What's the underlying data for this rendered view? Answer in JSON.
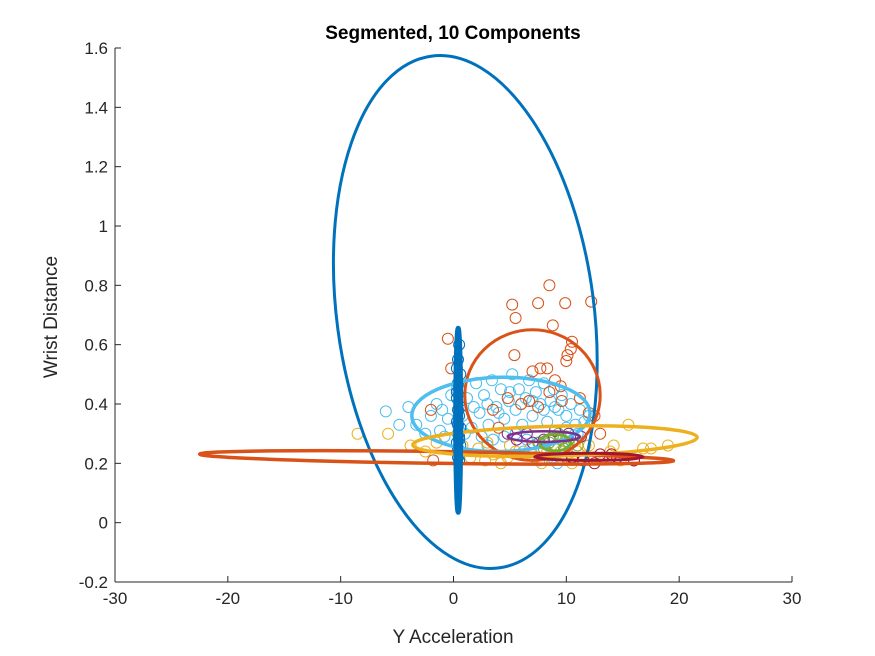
{
  "chart_data": {
    "type": "scatter",
    "title": "Segmented, 10 Components",
    "xlabel": "Y Acceleration",
    "ylabel": "Wrist Distance",
    "xlim": [
      -30,
      30
    ],
    "ylim": [
      -0.2,
      1.6
    ],
    "xticks": [
      -30,
      -20,
      -10,
      0,
      10,
      20,
      30
    ],
    "yticks": [
      -0.2,
      0,
      0.2,
      0.4,
      0.6,
      0.8,
      1,
      1.2,
      1.4,
      1.6
    ],
    "xtick_labels": [
      "-30",
      "-20",
      "-10",
      "0",
      "10",
      "20",
      "30"
    ],
    "ytick_labels": [
      "-0.2",
      "0",
      "0.2",
      "0.4",
      "0.6",
      "0.8",
      "1",
      "1.2",
      "1.4",
      "1.6"
    ],
    "grid": false,
    "legend": "none",
    "colors": {
      "blue": "#0072BD",
      "orange": "#D95319",
      "yellow": "#EDB120",
      "purple": "#7E2F8E",
      "green": "#77AC30",
      "lightblue": "#4DBEEE",
      "darkred": "#A2142F",
      "axis": "#262626"
    },
    "series": [
      {
        "color": "lightblue",
        "points": [
          [
            -6.0,
            0.375
          ],
          [
            -4.8,
            0.33
          ],
          [
            -4.0,
            0.39
          ],
          [
            -3.3,
            0.33
          ],
          [
            -2.5,
            0.3
          ],
          [
            -2.0,
            0.36
          ],
          [
            -1.5,
            0.4
          ],
          [
            -1.0,
            0.38
          ],
          [
            -0.5,
            0.35
          ],
          [
            -1.2,
            0.31
          ],
          [
            -0.2,
            0.43
          ],
          [
            0.3,
            0.45
          ],
          [
            0.8,
            0.36
          ],
          [
            1.2,
            0.42
          ],
          [
            1.6,
            0.32
          ],
          [
            2.0,
            0.47
          ],
          [
            2.3,
            0.37
          ],
          [
            2.7,
            0.43
          ],
          [
            3.1,
            0.33
          ],
          [
            3.4,
            0.48
          ],
          [
            3.8,
            0.39
          ],
          [
            4.2,
            0.45
          ],
          [
            4.5,
            0.35
          ],
          [
            4.9,
            0.41
          ],
          [
            5.2,
            0.5
          ],
          [
            5.5,
            0.38
          ],
          [
            5.8,
            0.45
          ],
          [
            6.1,
            0.33
          ],
          [
            6.4,
            0.42
          ],
          [
            6.7,
            0.48
          ],
          [
            7.0,
            0.36
          ],
          [
            7.3,
            0.44
          ],
          [
            7.7,
            0.4
          ],
          [
            8.0,
            0.47
          ],
          [
            8.3,
            0.34
          ],
          [
            8.6,
            0.41
          ],
          [
            8.9,
            0.45
          ],
          [
            9.3,
            0.38
          ],
          [
            9.6,
            0.43
          ],
          [
            10.0,
            0.36
          ],
          [
            10.4,
            0.4
          ],
          [
            10.8,
            0.33
          ],
          [
            11.2,
            0.38
          ],
          [
            11.6,
            0.34
          ],
          [
            12.0,
            0.36
          ],
          [
            1.0,
            0.3
          ],
          [
            2.5,
            0.29
          ],
          [
            3.5,
            0.28
          ],
          [
            4.5,
            0.29
          ],
          [
            5.5,
            0.3
          ],
          [
            6.5,
            0.28
          ],
          [
            7.5,
            0.27
          ],
          [
            8.5,
            0.28
          ],
          [
            9.5,
            0.29
          ],
          [
            10.5,
            0.27
          ],
          [
            3.0,
            0.4
          ],
          [
            6.0,
            0.4
          ],
          [
            9.0,
            0.39
          ],
          [
            4.0,
            0.37
          ],
          [
            7.0,
            0.41
          ],
          [
            0.5,
            0.31
          ],
          [
            -0.8,
            0.29
          ],
          [
            1.8,
            0.39
          ],
          [
            5.0,
            0.44
          ],
          [
            8.0,
            0.38
          ],
          [
            10.0,
            0.32
          ],
          [
            11.0,
            0.3
          ],
          [
            3.0,
            0.26
          ],
          [
            7.8,
            0.25
          ],
          [
            9.8,
            0.24
          ],
          [
            8.8,
            0.22
          ],
          [
            7.6,
            0.21
          ],
          [
            9.2,
            0.2
          ],
          [
            10.6,
            0.22
          ],
          [
            6.2,
            0.24
          ]
        ]
      },
      {
        "color": "orange",
        "points": [
          [
            8.5,
            0.8
          ],
          [
            12.2,
            0.745
          ],
          [
            7.5,
            0.74
          ],
          [
            9.9,
            0.74
          ],
          [
            5.2,
            0.735
          ],
          [
            5.5,
            0.69
          ],
          [
            8.8,
            0.665
          ],
          [
            10.5,
            0.61
          ],
          [
            10.4,
            0.585
          ],
          [
            10.1,
            0.565
          ],
          [
            10.0,
            0.545
          ],
          [
            5.4,
            0.565
          ],
          [
            7.0,
            0.51
          ],
          [
            7.7,
            0.52
          ],
          [
            8.3,
            0.52
          ],
          [
            9.0,
            0.48
          ],
          [
            9.5,
            0.46
          ],
          [
            8.5,
            0.44
          ],
          [
            6.0,
            0.4
          ],
          [
            7.5,
            0.39
          ],
          [
            9.6,
            0.41
          ],
          [
            11.2,
            0.42
          ],
          [
            12.0,
            0.37
          ],
          [
            12.5,
            0.36
          ],
          [
            -0.5,
            0.62
          ],
          [
            -2.0,
            0.38
          ],
          [
            -1.8,
            0.21
          ],
          [
            16.0,
            0.21
          ],
          [
            -0.2,
            0.52
          ],
          [
            4.8,
            0.42
          ],
          [
            6.7,
            0.41
          ],
          [
            4.0,
            0.32
          ],
          [
            3.5,
            0.38
          ],
          [
            13.0,
            0.3
          ]
        ]
      },
      {
        "color": "yellow",
        "points": [
          [
            -8.5,
            0.3
          ],
          [
            -5.8,
            0.3
          ],
          [
            -3.8,
            0.26
          ],
          [
            15.5,
            0.33
          ],
          [
            16.8,
            0.25
          ],
          [
            17.5,
            0.25
          ],
          [
            19.0,
            0.26
          ],
          [
            14.2,
            0.26
          ],
          [
            13.3,
            0.22
          ],
          [
            12.5,
            0.22
          ],
          [
            11.0,
            0.24
          ],
          [
            10.5,
            0.2
          ],
          [
            9.5,
            0.24
          ],
          [
            8.8,
            0.21
          ],
          [
            8.3,
            0.24
          ],
          [
            7.8,
            0.2
          ],
          [
            6.8,
            0.25
          ],
          [
            6.2,
            0.23
          ],
          [
            5.5,
            0.24
          ],
          [
            4.8,
            0.22
          ],
          [
            4.2,
            0.2
          ],
          [
            3.5,
            0.23
          ],
          [
            2.8,
            0.21
          ],
          [
            2.2,
            0.25
          ],
          [
            1.5,
            0.22
          ],
          [
            0.8,
            0.26
          ],
          [
            -1.5,
            0.27
          ],
          [
            -2.5,
            0.24
          ],
          [
            12.0,
            0.26
          ],
          [
            14.8,
            0.21
          ],
          [
            13.9,
            0.24
          ],
          [
            11.7,
            0.26
          ],
          [
            10.0,
            0.22
          ],
          [
            7.2,
            0.22
          ],
          [
            5.0,
            0.26
          ],
          [
            3.0,
            0.27
          ]
        ]
      },
      {
        "color": "green",
        "points": [
          [
            9.0,
            0.26
          ],
          [
            9.5,
            0.28
          ],
          [
            10.2,
            0.27
          ],
          [
            8.5,
            0.27
          ],
          [
            8.0,
            0.25
          ],
          [
            9.8,
            0.25
          ],
          [
            10.6,
            0.28
          ],
          [
            8.8,
            0.29
          ],
          [
            9.3,
            0.3
          ],
          [
            7.6,
            0.27
          ],
          [
            11.0,
            0.26
          ],
          [
            10.0,
            0.29
          ]
        ]
      },
      {
        "color": "purple",
        "points": [
          [
            8.0,
            0.28
          ],
          [
            7.0,
            0.27
          ],
          [
            6.5,
            0.3
          ],
          [
            9.0,
            0.31
          ],
          [
            10.2,
            0.3
          ],
          [
            11.3,
            0.29
          ],
          [
            5.6,
            0.28
          ],
          [
            4.8,
            0.3
          ]
        ]
      },
      {
        "color": "blue",
        "points": [
          [
            0.5,
            0.6
          ],
          [
            0.4,
            0.55
          ],
          [
            0.3,
            0.52
          ],
          [
            0.6,
            0.5
          ],
          [
            0.4,
            0.47
          ],
          [
            0.5,
            0.45
          ],
          [
            0.3,
            0.42
          ],
          [
            0.6,
            0.41
          ],
          [
            0.4,
            0.38
          ],
          [
            0.5,
            0.36
          ],
          [
            0.3,
            0.34
          ],
          [
            0.6,
            0.32
          ],
          [
            0.4,
            0.3
          ],
          [
            0.5,
            0.28
          ],
          [
            0.3,
            0.27
          ],
          [
            0.6,
            0.26
          ],
          [
            0.4,
            0.25
          ],
          [
            0.5,
            0.23
          ],
          [
            0.4,
            0.22
          ],
          [
            0.5,
            0.21
          ],
          [
            0.3,
            0.44
          ],
          [
            0.6,
            0.39
          ],
          [
            0.4,
            0.33
          ],
          [
            0.5,
            0.29
          ]
        ]
      },
      {
        "color": "darkred",
        "points": [
          [
            16.0,
            0.21
          ],
          [
            14.5,
            0.22
          ],
          [
            13.0,
            0.23
          ],
          [
            11.5,
            0.21
          ],
          [
            10.5,
            0.22
          ],
          [
            12.5,
            0.2
          ],
          [
            14.0,
            0.23
          ]
        ]
      }
    ],
    "ellipses": [
      {
        "color": "blue",
        "cx": 1.05,
        "cy": 0.71,
        "rx": 11.4,
        "ry": 0.87,
        "rotation_deg": -7.5,
        "stroke_width": 3
      },
      {
        "color": "orange",
        "cx": 7.0,
        "cy": 0.43,
        "rx": 6.0,
        "ry": 0.22,
        "rotation_deg": 0,
        "stroke_width": 3
      },
      {
        "color": "lightblue",
        "cx": 4.2,
        "cy": 0.365,
        "rx": 7.9,
        "ry": 0.125,
        "rotation_deg": -1,
        "stroke_width": 3.5
      },
      {
        "color": "orange",
        "cx": -1.5,
        "cy": 0.22,
        "rx": 21.0,
        "ry": 0.02,
        "rotation_deg": 0.8,
        "stroke_width": 3.5
      },
      {
        "color": "yellow",
        "cx": 9.0,
        "cy": 0.275,
        "rx": 12.6,
        "ry": 0.05,
        "rotation_deg": -1.5,
        "stroke_width": 3.5
      },
      {
        "color": "darkred",
        "cx": 12.0,
        "cy": 0.222,
        "rx": 4.8,
        "ry": 0.012,
        "rotation_deg": 0,
        "stroke_width": 3
      },
      {
        "color": "green",
        "cx": 9.0,
        "cy": 0.27,
        "rx": 1.4,
        "ry": 0.028,
        "rotation_deg": 0,
        "stroke_width": 3
      },
      {
        "color": "purple",
        "cx": 8.0,
        "cy": 0.29,
        "rx": 3.2,
        "ry": 0.018,
        "rotation_deg": 0,
        "stroke_width": 2.5
      },
      {
        "color": "blue",
        "cx": 0.42,
        "cy": 0.345,
        "rx": 0.22,
        "ry": 0.31,
        "rotation_deg": 0,
        "stroke_width": 5
      },
      {
        "color": "blue",
        "cx": 0.42,
        "cy": 0.45,
        "rx": 0.12,
        "ry": 0.17,
        "rotation_deg": 0,
        "stroke_width": 3
      }
    ]
  }
}
